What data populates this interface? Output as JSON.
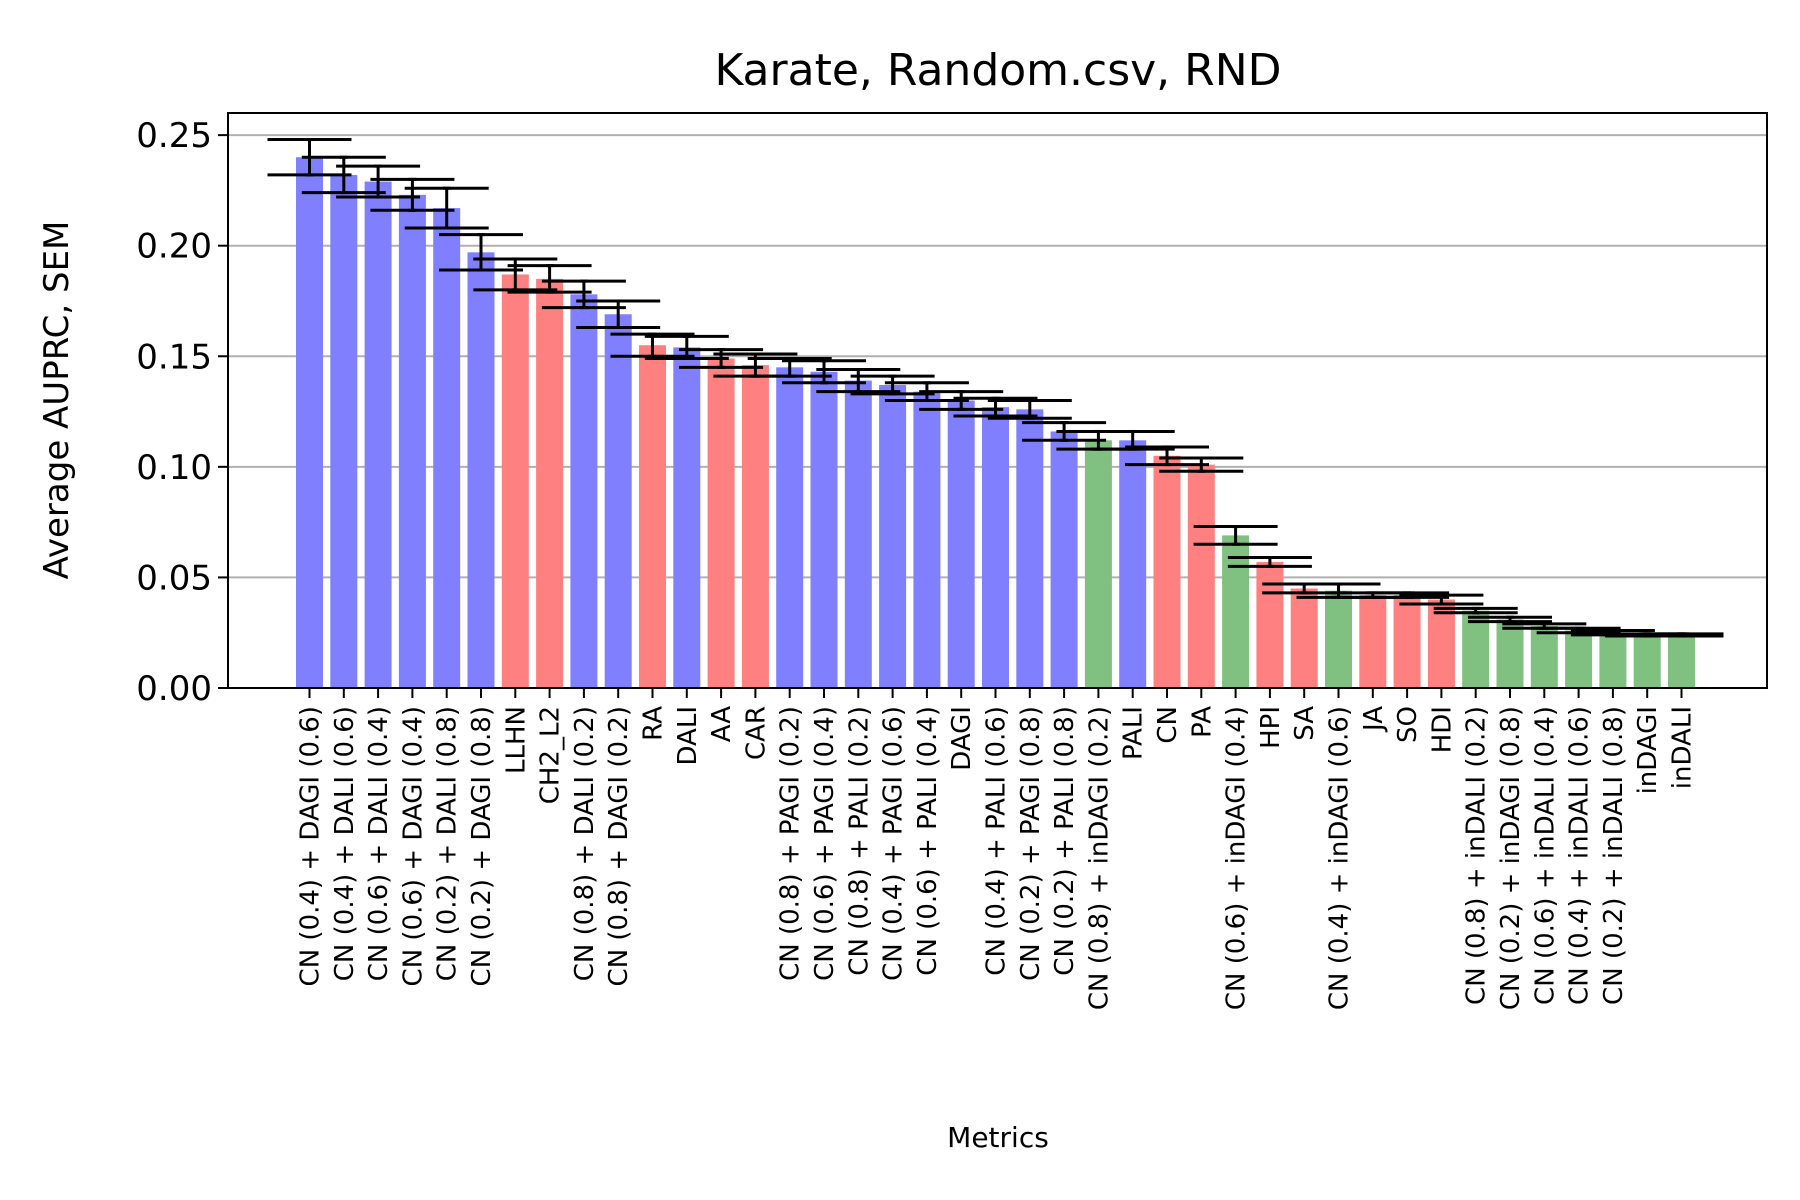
{
  "chart_data": {
    "type": "bar",
    "title": "Karate, Random.csv, RND",
    "xlabel": "Metrics",
    "ylabel": "Average AUPRC, SEM",
    "ylim": [
      0,
      0.26
    ],
    "yticks": [
      0.0,
      0.05,
      0.1,
      0.15,
      0.2,
      0.25
    ],
    "ytick_labels": [
      "0.00",
      "0.05",
      "0.10",
      "0.15",
      "0.20",
      "0.25"
    ],
    "grid": "y",
    "legend": "none",
    "colors": {
      "blue": "#8080ff",
      "red": "#ff8080",
      "green": "#80c080",
      "error": "#000000",
      "grid": "#b0b0b0"
    },
    "bars": [
      {
        "label": "CN (0.4) + DAGI (0.6)",
        "value": 0.24,
        "sem": 0.008,
        "color": "blue"
      },
      {
        "label": "CN (0.4) + DALI (0.6)",
        "value": 0.232,
        "sem": 0.008,
        "color": "blue"
      },
      {
        "label": "CN (0.6) + DALI (0.4)",
        "value": 0.229,
        "sem": 0.007,
        "color": "blue"
      },
      {
        "label": "CN (0.6) + DAGI (0.4)",
        "value": 0.223,
        "sem": 0.007,
        "color": "blue"
      },
      {
        "label": "CN (0.2) + DALI (0.8)",
        "value": 0.217,
        "sem": 0.009,
        "color": "blue"
      },
      {
        "label": "CN (0.2) + DAGI (0.8)",
        "value": 0.197,
        "sem": 0.008,
        "color": "blue"
      },
      {
        "label": "LLHN",
        "value": 0.187,
        "sem": 0.007,
        "color": "red"
      },
      {
        "label": "CH2_L2",
        "value": 0.185,
        "sem": 0.006,
        "color": "red"
      },
      {
        "label": "CN (0.8) + DALI (0.2)",
        "value": 0.178,
        "sem": 0.006,
        "color": "blue"
      },
      {
        "label": "CN (0.8) + DAGI (0.2)",
        "value": 0.169,
        "sem": 0.006,
        "color": "blue"
      },
      {
        "label": "RA",
        "value": 0.155,
        "sem": 0.005,
        "color": "red"
      },
      {
        "label": "DALI",
        "value": 0.154,
        "sem": 0.005,
        "color": "blue"
      },
      {
        "label": "AA",
        "value": 0.149,
        "sem": 0.004,
        "color": "red"
      },
      {
        "label": "CAR",
        "value": 0.146,
        "sem": 0.005,
        "color": "red"
      },
      {
        "label": "CN (0.8) + PAGI (0.2)",
        "value": 0.145,
        "sem": 0.004,
        "color": "blue"
      },
      {
        "label": "CN (0.6) + PAGI (0.4)",
        "value": 0.143,
        "sem": 0.005,
        "color": "blue"
      },
      {
        "label": "CN (0.8) + PALI (0.2)",
        "value": 0.139,
        "sem": 0.005,
        "color": "blue"
      },
      {
        "label": "CN (0.4) + PAGI (0.6)",
        "value": 0.137,
        "sem": 0.004,
        "color": "blue"
      },
      {
        "label": "CN (0.6) + PALI (0.4)",
        "value": 0.134,
        "sem": 0.004,
        "color": "blue"
      },
      {
        "label": "DAGI",
        "value": 0.13,
        "sem": 0.004,
        "color": "blue"
      },
      {
        "label": "CN (0.4) + PALI (0.6)",
        "value": 0.127,
        "sem": 0.004,
        "color": "blue"
      },
      {
        "label": "CN (0.2) + PAGI (0.8)",
        "value": 0.126,
        "sem": 0.004,
        "color": "blue"
      },
      {
        "label": "CN (0.2) + PALI (0.8)",
        "value": 0.116,
        "sem": 0.004,
        "color": "blue"
      },
      {
        "label": "CN (0.8) + inDAGI (0.2)",
        "value": 0.112,
        "sem": 0.004,
        "color": "green"
      },
      {
        "label": "PALI",
        "value": 0.112,
        "sem": 0.004,
        "color": "blue"
      },
      {
        "label": "CN",
        "value": 0.105,
        "sem": 0.004,
        "color": "red"
      },
      {
        "label": "PA",
        "value": 0.101,
        "sem": 0.003,
        "color": "red"
      },
      {
        "label": "CN (0.6) + inDAGI (0.4)",
        "value": 0.069,
        "sem": 0.004,
        "color": "green"
      },
      {
        "label": "HPI",
        "value": 0.057,
        "sem": 0.002,
        "color": "red"
      },
      {
        "label": "SA",
        "value": 0.045,
        "sem": 0.002,
        "color": "red"
      },
      {
        "label": "CN (0.4) + inDAGI (0.6)",
        "value": 0.044,
        "sem": 0.003,
        "color": "green"
      },
      {
        "label": "JA",
        "value": 0.042,
        "sem": 0.001,
        "color": "red"
      },
      {
        "label": "SO",
        "value": 0.042,
        "sem": 0.001,
        "color": "red"
      },
      {
        "label": "HDI",
        "value": 0.04,
        "sem": 0.002,
        "color": "red"
      },
      {
        "label": "CN (0.8) + inDALI (0.2)",
        "value": 0.035,
        "sem": 0.001,
        "color": "green"
      },
      {
        "label": "CN (0.2) + inDAGI (0.8)",
        "value": 0.031,
        "sem": 0.001,
        "color": "green"
      },
      {
        "label": "CN (0.6) + inDALI (0.4)",
        "value": 0.028,
        "sem": 0.001,
        "color": "green"
      },
      {
        "label": "CN (0.4) + inDALI (0.6)",
        "value": 0.026,
        "sem": 0.001,
        "color": "green"
      },
      {
        "label": "CN (0.2) + inDALI (0.8)",
        "value": 0.025,
        "sem": 0.001,
        "color": "green"
      },
      {
        "label": "inDAGI",
        "value": 0.024,
        "sem": 0.0005,
        "color": "green"
      },
      {
        "label": "inDALI",
        "value": 0.024,
        "sem": 0.0005,
        "color": "green"
      }
    ]
  }
}
